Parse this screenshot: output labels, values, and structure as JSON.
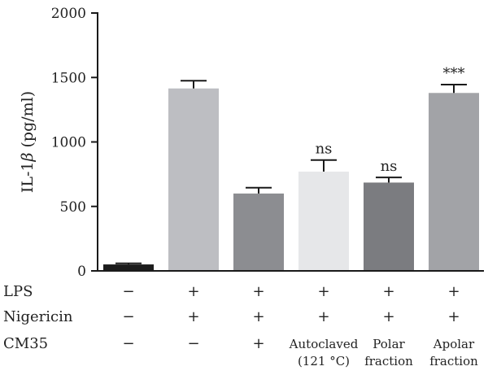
{
  "chart_data": {
    "type": "bar",
    "ylabel_prefix": "IL-1",
    "ylabel_symbol": "β",
    "ylabel_suffix": " (pg/ml)",
    "ylim": [
      0,
      2000
    ],
    "yticks": [
      0,
      500,
      1000,
      1500,
      2000
    ],
    "grid": false,
    "bars": [
      {
        "value": 50,
        "error": 8,
        "color": "#1c1c1c",
        "annotation": ""
      },
      {
        "value": 1415,
        "error": 60,
        "color": "#bdbec2",
        "annotation": ""
      },
      {
        "value": 600,
        "error": 45,
        "color": "#8c8d91",
        "annotation": ""
      },
      {
        "value": 770,
        "error": 90,
        "color": "#e6e7e9",
        "annotation": "ns"
      },
      {
        "value": 685,
        "error": 40,
        "color": "#7b7c80",
        "annotation": "ns"
      },
      {
        "value": 1380,
        "error": 65,
        "color": "#a2a3a7",
        "annotation": "***"
      }
    ],
    "conditions": [
      {
        "name": "LPS",
        "values": [
          "−",
          "+",
          "+",
          "+",
          "+",
          "+"
        ]
      },
      {
        "name": "Nigericin",
        "values": [
          "−",
          "+",
          "+",
          "+",
          "+",
          "+"
        ]
      },
      {
        "name": "CM35",
        "values": [
          "−",
          "−",
          "+",
          "",
          "",
          ""
        ]
      }
    ],
    "group_labels": [
      [],
      [],
      [],
      [
        "Autoclaved",
        "(121 °C)"
      ],
      [
        "Polar",
        "fraction"
      ],
      [
        "Apolar",
        "fraction"
      ]
    ]
  }
}
